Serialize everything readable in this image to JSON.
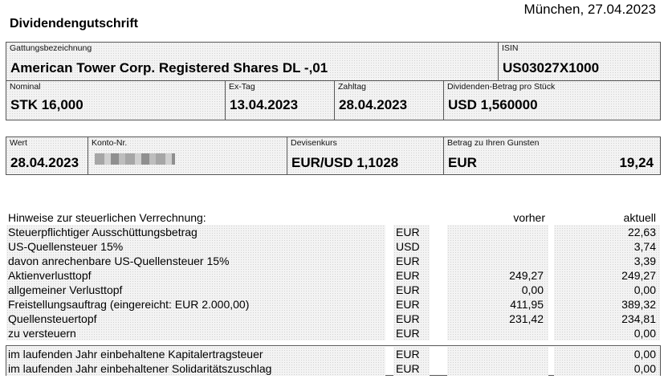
{
  "header": {
    "place_date": "München, 27.04.2023",
    "title": "Dividendengutschrift"
  },
  "security": {
    "name_label": "Gattungsbezeichnung",
    "name_value": "American Tower Corp. Registered Shares DL -,01",
    "isin_label": "ISIN",
    "isin_value": "US03027X1000"
  },
  "position": {
    "nominal_label": "Nominal",
    "nominal_value": "STK 16,000",
    "ex_label": "Ex-Tag",
    "ex_value": "13.04.2023",
    "pay_label": "Zahltag",
    "pay_value": "28.04.2023",
    "div_label": "Dividenden-Betrag pro Stück",
    "div_value": "USD 1,560000"
  },
  "booking": {
    "wert_label": "Wert",
    "wert_value": "28.04.2023",
    "konto_label": "Konto-Nr.",
    "fx_label": "Devisenkurs",
    "fx_value": "EUR/USD 1,1028",
    "amount_label": "Betrag zu Ihren Gunsten",
    "amount_currency": "EUR",
    "amount_value": "19,24"
  },
  "tax": {
    "heading": "Hinweise zur steuerlichen Verrechnung:",
    "col_prev": "vorher",
    "col_curr": "aktuell",
    "rows": [
      {
        "text": "Steuerpflichtiger Ausschüttungsbetrag",
        "cur": "EUR",
        "prev": "",
        "curr": "22,63"
      },
      {
        "text": "US-Quellensteuer 15%",
        "cur": "USD",
        "prev": "",
        "curr": "3,74"
      },
      {
        "text": "davon anrechenbare US-Quellensteuer 15%",
        "cur": "EUR",
        "prev": "",
        "curr": "3,39"
      },
      {
        "text": "Aktienverlusttopf",
        "cur": "EUR",
        "prev": "249,27",
        "curr": "249,27"
      },
      {
        "text": "allgemeiner Verlusttopf",
        "cur": "EUR",
        "prev": "0,00",
        "curr": "0,00"
      },
      {
        "text": "Freistellungsauftrag (eingereicht: EUR 2.000,00)",
        "cur": "EUR",
        "prev": "411,95",
        "curr": "389,32"
      },
      {
        "text": "Quellensteuertopf",
        "cur": "EUR",
        "prev": "231,42",
        "curr": "234,81"
      },
      {
        "text": "zu versteuern",
        "cur": "EUR",
        "prev": "",
        "curr": "0,00"
      },
      {
        "text": "im laufenden Jahr einbehaltene Kapitalertragsteuer",
        "cur": "EUR",
        "prev": "",
        "curr": "0,00"
      },
      {
        "text": "im laufenden Jahr einbehaltener Solidaritätszuschlag",
        "cur": "EUR",
        "prev": "",
        "curr": "0,00"
      }
    ]
  }
}
